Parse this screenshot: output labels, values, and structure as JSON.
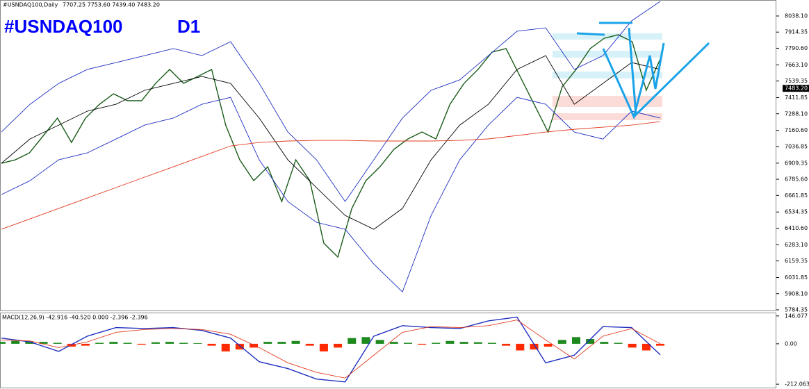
{
  "chart_data": [
    {
      "type": "price",
      "symbol": "#USNDAQ100,Daily",
      "ohlc": "7707.25 7753.60 7439.40 7483.20",
      "title": "#USNDAQ100",
      "timeframe": "D1",
      "last_price": {
        "value": 7483.2,
        "label": "7483.20"
      },
      "ylim": [
        5773.7,
        8160.6
      ],
      "yticks": [
        {
          "value": 8038.1,
          "label": "8038.10"
        },
        7914.35,
        {
          "value": 7790.6,
          "label": "7790.60"
        },
        {
          "value": 7663.1,
          "label": "7663.10"
        },
        7539.35,
        7411.85,
        {
          "value": 7288.1,
          "label": "7288.10"
        },
        {
          "value": 7160.6,
          "label": "7160.60"
        },
        7036.85,
        6909.35,
        {
          "value": 6785.6,
          "label": "6785.60"
        },
        6661.85,
        6534.35,
        {
          "value": 6410.6,
          "label": "6410.60"
        },
        {
          "value": 6283.1,
          "label": "6283.10"
        },
        6159.35,
        6031.85,
        {
          "value": 5908.1,
          "label": "5908.10"
        },
        5784.35
      ],
      "series": [
        {
          "color": "#1a5c1a",
          "values": [
            6908,
            6935,
            6988,
            7121,
            7255,
            7068,
            7255,
            7361,
            7441,
            7388,
            7388,
            7521,
            7628,
            7521,
            7574,
            7628,
            7201,
            6935,
            6775,
            6881,
            6615,
            6935,
            6775,
            6295,
            6189,
            6562,
            6775,
            6881,
            7015,
            7095,
            7148,
            7095,
            7361,
            7521,
            7628,
            7761,
            7788,
            7574,
            7361,
            7148,
            7494,
            7628,
            7788,
            7867,
            7894,
            7841,
            7468,
            7708
          ]
        },
        {
          "color": "#1f2fbf",
          "values": [
            7148,
            7361,
            7521,
            7628,
            7681,
            7734,
            7788,
            7734,
            7841,
            7521,
            7148,
            6935,
            6615,
            6935,
            7255,
            7468,
            7548,
            7734,
            7921,
            7947,
            7628,
            7734,
            8001,
            8150
          ]
        },
        {
          "color": "#000000",
          "values": [
            6908,
            7095,
            7201,
            7308,
            7361,
            7468,
            7521,
            7574,
            7521,
            7255,
            6935,
            6721,
            6508,
            6402,
            6562,
            6935,
            7201,
            7361,
            7628,
            7734,
            7361,
            7521,
            7681,
            7628
          ]
        },
        {
          "color": "#1f2fbf",
          "values": [
            6668,
            6775,
            6935,
            6988,
            7094,
            7201,
            7255,
            7361,
            7414,
            6935,
            6615,
            6455,
            6402,
            6135,
            5922,
            6508,
            6935,
            7201,
            7414,
            7361,
            7148,
            7094,
            7308,
            7255
          ]
        },
        {
          "color": "#e03a1e",
          "values": [
            6402,
            6482,
            6562,
            6642,
            6722,
            6802,
            6881,
            6961,
            7041,
            7068,
            7079,
            7084,
            7084,
            7079,
            7079,
            7079,
            7084,
            7095,
            7121,
            7148,
            7169,
            7185,
            7201,
            7228
          ]
        }
      ]
    },
    {
      "type": "macd",
      "label": "MACD(12,26,9) -42.916 -40.520 0.000 -2.396 -2.396",
      "ylim": [
        -230,
        160
      ],
      "yticks": [
        146.077,
        {
          "value": 0,
          "label": "0.00"
        },
        -212.063
      ],
      "positive_color": "#1e8a1e",
      "negative_color": "#ff2a00",
      "histogram": [
        10,
        15,
        12,
        10,
        5,
        -15,
        -10,
        5,
        10,
        5,
        -5,
        8,
        10,
        5,
        3,
        -10,
        -40,
        -30,
        -20,
        10,
        10,
        15,
        -10,
        -40,
        -20,
        30,
        35,
        20,
        10,
        5,
        -5,
        5,
        15,
        10,
        8,
        5,
        -10,
        -35,
        -30,
        -15,
        20,
        35,
        25,
        10,
        5,
        -20,
        -35,
        -10
      ],
      "series": [
        {
          "color": "#1f2fbf",
          "values": [
            30,
            10,
            -40,
            40,
            85,
            80,
            85,
            70,
            30,
            -94,
            -130,
            -185,
            -200,
            40,
            95,
            85,
            80,
            120,
            140,
            -100,
            -60,
            90,
            85,
            -58
          ]
        },
        {
          "color": "#e03a1e",
          "values": [
            20,
            15,
            -20,
            10,
            60,
            75,
            80,
            75,
            50,
            -20,
            -100,
            -150,
            -180,
            -60,
            60,
            90,
            85,
            95,
            125,
            20,
            -80,
            40,
            80,
            0
          ]
        }
      ]
    }
  ]
}
